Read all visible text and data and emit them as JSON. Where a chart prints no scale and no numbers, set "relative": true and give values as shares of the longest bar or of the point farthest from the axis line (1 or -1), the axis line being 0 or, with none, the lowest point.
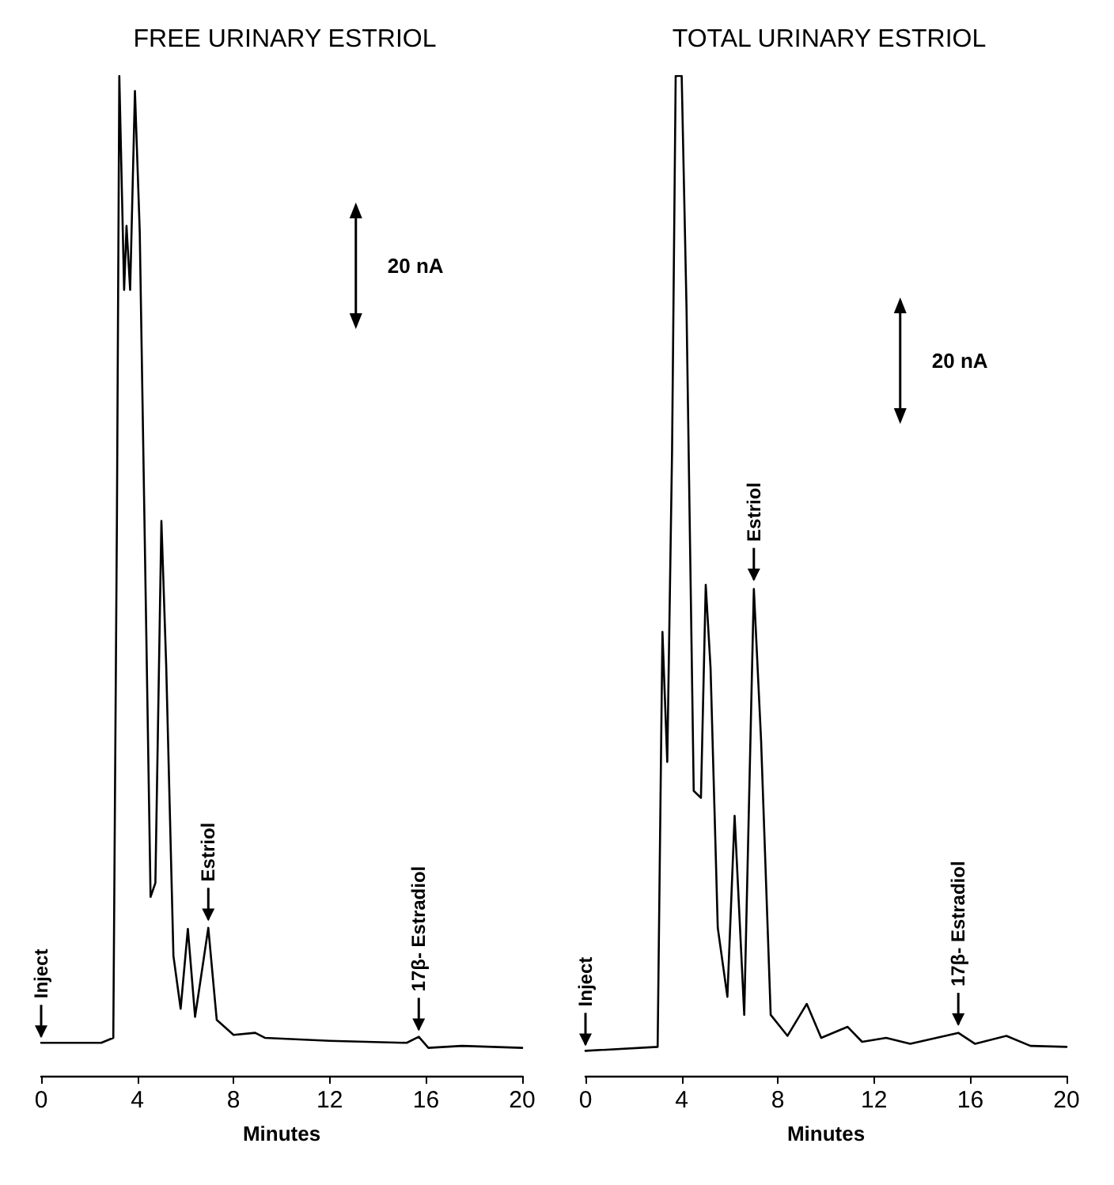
{
  "chart_data": [
    {
      "type": "line",
      "title": "FREE URINARY ESTRIOL",
      "xlabel": "Minutes",
      "relative": true,
      "xlim": [
        0,
        20
      ],
      "xticks": [
        0,
        4,
        8,
        12,
        16,
        20
      ],
      "grid": false,
      "marker": "none",
      "line_style": "solid",
      "series": [
        {
          "color": "#000000",
          "x": [
            0,
            2.5,
            3.0,
            3.15,
            3.25,
            3.45,
            3.55,
            3.7,
            3.9,
            4.1,
            4.55,
            4.75,
            5.0,
            5.2,
            5.5,
            5.8,
            6.1,
            6.4,
            6.95,
            7.3,
            8.0,
            8.9,
            9.3,
            12,
            15.2,
            15.7,
            16.1,
            17.5,
            20
          ],
          "values": [
            0.033,
            0.033,
            0.038,
            0.555,
            1.0,
            0.786,
            0.85,
            0.786,
            0.985,
            0.844,
            0.179,
            0.193,
            0.555,
            0.41,
            0.12,
            0.067,
            0.147,
            0.059,
            0.148,
            0.056,
            0.041,
            0.043,
            0.038,
            0.035,
            0.033,
            0.039,
            0.028,
            0.03,
            0.028
          ]
        }
      ],
      "annotations": [
        "20 nA",
        {
          "text": "Inject",
          "x": 0,
          "y": 0.033
        },
        {
          "text": "Estriol",
          "x": 6.95,
          "y": 0.15
        },
        {
          "text": "17β- Estradiol",
          "x": 15.7,
          "y": 0.04
        }
      ]
    },
    {
      "type": "line",
      "title": "TOTAL URINARY ESTRIOL",
      "xlabel": "Minutes",
      "relative": true,
      "xlim": [
        0,
        20
      ],
      "xticks": [
        0,
        4,
        8,
        12,
        16,
        20
      ],
      "grid": false,
      "marker": "none",
      "line_style": "solid",
      "series": [
        {
          "color": "#000000",
          "x": [
            0,
            3.0,
            3.2,
            3.4,
            3.6,
            3.75,
            4.0,
            4.2,
            4.5,
            4.8,
            5.0,
            5.2,
            5.5,
            5.9,
            6.2,
            6.6,
            7.0,
            7.3,
            7.7,
            8.4,
            9.2,
            9.8,
            10.9,
            11.5,
            12.5,
            13.5,
            15.5,
            16.2,
            17.5,
            18.5,
            20
          ],
          "values": [
            0.025,
            0.029,
            0.444,
            0.314,
            0.625,
            1.0,
            1.0,
            0.769,
            0.285,
            0.278,
            0.491,
            0.408,
            0.148,
            0.079,
            0.26,
            0.061,
            0.487,
            0.336,
            0.061,
            0.04,
            0.072,
            0.038,
            0.049,
            0.034,
            0.038,
            0.032,
            0.043,
            0.032,
            0.04,
            0.03,
            0.029
          ]
        }
      ],
      "annotations": [
        "20 nA",
        {
          "text": "Inject",
          "x": 0,
          "y": 0.025
        },
        {
          "text": "Estriol",
          "x": 7.0,
          "y": 0.49
        },
        {
          "text": "17β- Estradiol",
          "x": 15.5,
          "y": 0.045
        }
      ]
    }
  ]
}
